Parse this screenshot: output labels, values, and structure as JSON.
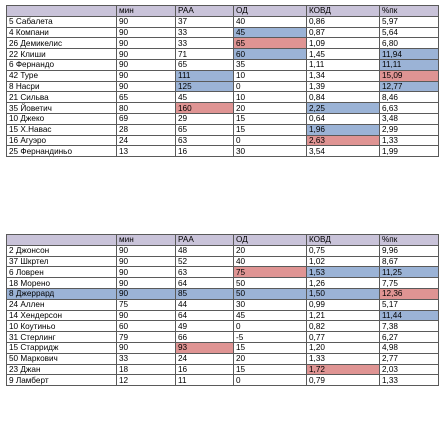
{
  "colors": {
    "header": "#c9c3d9",
    "highlight_blue": "#9bb3d6",
    "highlight_red": "#df9493"
  },
  "tables": [
    {
      "headers": [
        "",
        "мин",
        "РАА",
        "ОД",
        "КОВД",
        "%пк"
      ],
      "rows": [
        {
          "cells": [
            "5 Сабалета",
            "90",
            "37",
            "40",
            "0,86",
            "5,97"
          ],
          "hl": [
            "",
            "",
            "",
            "",
            "",
            ""
          ]
        },
        {
          "cells": [
            "4 Компани",
            "90",
            "33",
            "45",
            "0,87",
            "5,64"
          ],
          "hl": [
            "",
            "",
            "",
            "blue",
            "",
            ""
          ]
        },
        {
          "cells": [
            "26 Демикелис",
            "90",
            "33",
            "65",
            "1,09",
            "6,80"
          ],
          "hl": [
            "",
            "",
            "",
            "red",
            "",
            ""
          ]
        },
        {
          "cells": [
            "22 Клиши",
            "90",
            "71",
            "60",
            "1,45",
            "11,94"
          ],
          "hl": [
            "",
            "",
            "",
            "blue",
            "",
            "blue"
          ]
        },
        {
          "cells": [
            "6 Фернандо",
            "90",
            "65",
            "35",
            "1,11",
            "11,11"
          ],
          "hl": [
            "",
            "",
            "",
            "",
            "",
            "blue"
          ]
        },
        {
          "cells": [
            "42 Туре",
            "90",
            "111",
            "10",
            "1,34",
            "15,09"
          ],
          "hl": [
            "",
            "",
            "blue",
            "",
            "",
            "red"
          ]
        },
        {
          "cells": [
            "8 Насри",
            "90",
            "125",
            "0",
            "1,39",
            "12,77"
          ],
          "hl": [
            "",
            "",
            "blue",
            "",
            "",
            "blue"
          ]
        },
        {
          "cells": [
            "21 Сильва",
            "65",
            "45",
            "10",
            "0,84",
            "8,46"
          ],
          "hl": [
            "",
            "",
            "",
            "",
            "",
            ""
          ]
        },
        {
          "cells": [
            "35 Йоветич",
            "80",
            "160",
            "20",
            "2,25",
            "6,63"
          ],
          "hl": [
            "",
            "",
            "red",
            "",
            "blue",
            ""
          ]
        },
        {
          "cells": [
            "10 Джеко",
            "69",
            "29",
            "15",
            "0,64",
            "3,48"
          ],
          "hl": [
            "",
            "",
            "",
            "",
            "",
            ""
          ]
        },
        {
          "cells": [
            "15 Х.Навас",
            "28",
            "65",
            "15",
            "1,96",
            "2,99"
          ],
          "hl": [
            "",
            "",
            "",
            "",
            "blue",
            ""
          ]
        },
        {
          "cells": [
            "16 Агуэро",
            "24",
            "63",
            "0",
            "2,63",
            "1,33"
          ],
          "hl": [
            "",
            "",
            "",
            "",
            "red",
            ""
          ]
        },
        {
          "cells": [
            "25 Фернандиньо",
            "13",
            "16",
            "30",
            "3,54",
            "1,99"
          ],
          "hl": [
            "",
            "",
            "",
            "",
            "",
            ""
          ]
        }
      ]
    },
    {
      "headers": [
        "",
        "мин",
        "РАА",
        "ОД",
        "КОВД",
        "%пк"
      ],
      "rows": [
        {
          "cells": [
            "2 Джонсон",
            "90",
            "48",
            "20",
            "0,75",
            "9,96"
          ],
          "hl": [
            "",
            "",
            "",
            "",
            "",
            ""
          ]
        },
        {
          "cells": [
            "37 Шкртел",
            "90",
            "52",
            "40",
            "1,02",
            "8,67"
          ],
          "hl": [
            "",
            "",
            "",
            "",
            "",
            ""
          ]
        },
        {
          "cells": [
            "6 Ловрен",
            "90",
            "63",
            "75",
            "1,53",
            "11,25"
          ],
          "hl": [
            "",
            "",
            "",
            "red",
            "blue",
            "blue"
          ]
        },
        {
          "cells": [
            "18 Морено",
            "90",
            "64",
            "50",
            "1,26",
            "7,75"
          ],
          "hl": [
            "",
            "",
            "",
            "",
            "",
            ""
          ]
        },
        {
          "cells": [
            "8 Джеррард",
            "90",
            "85",
            "50",
            "1,50",
            "12,36"
          ],
          "hl": [
            "blue",
            "blue",
            "blue",
            "blue",
            "blue",
            "red"
          ]
        },
        {
          "cells": [
            "24 Аллен",
            "75",
            "44",
            "30",
            "0,99",
            "5,17"
          ],
          "hl": [
            "",
            "",
            "",
            "",
            "",
            ""
          ]
        },
        {
          "cells": [
            "14 Хендерсон",
            "90",
            "64",
            "45",
            "1,21",
            "11,44"
          ],
          "hl": [
            "",
            "",
            "",
            "",
            "",
            "blue"
          ]
        },
        {
          "cells": [
            "10 Коутиньо",
            "60",
            "49",
            "0",
            "0,82",
            "7,38"
          ],
          "hl": [
            "",
            "",
            "",
            "",
            "",
            ""
          ]
        },
        {
          "cells": [
            "31 Стерлинг",
            "79",
            "66",
            "-5",
            "0,77",
            "6,27"
          ],
          "hl": [
            "",
            "",
            "",
            "",
            "",
            ""
          ]
        },
        {
          "cells": [
            "15 Старридж",
            "90",
            "93",
            "15",
            "1,20",
            "4,98"
          ],
          "hl": [
            "",
            "",
            "red",
            "",
            "",
            ""
          ]
        },
        {
          "cells": [
            "50 Маркович",
            "33",
            "24",
            "20",
            "1,33",
            "2,77"
          ],
          "hl": [
            "",
            "",
            "",
            "",
            "",
            ""
          ]
        },
        {
          "cells": [
            "23 Джан",
            "18",
            "16",
            "15",
            "1,72",
            "2,03"
          ],
          "hl": [
            "",
            "",
            "",
            "",
            "red",
            ""
          ]
        },
        {
          "cells": [
            "9 Ламберт",
            "12",
            "11",
            "0",
            "0,79",
            "1,33"
          ],
          "hl": [
            "",
            "",
            "",
            "",
            "",
            ""
          ]
        }
      ]
    }
  ]
}
